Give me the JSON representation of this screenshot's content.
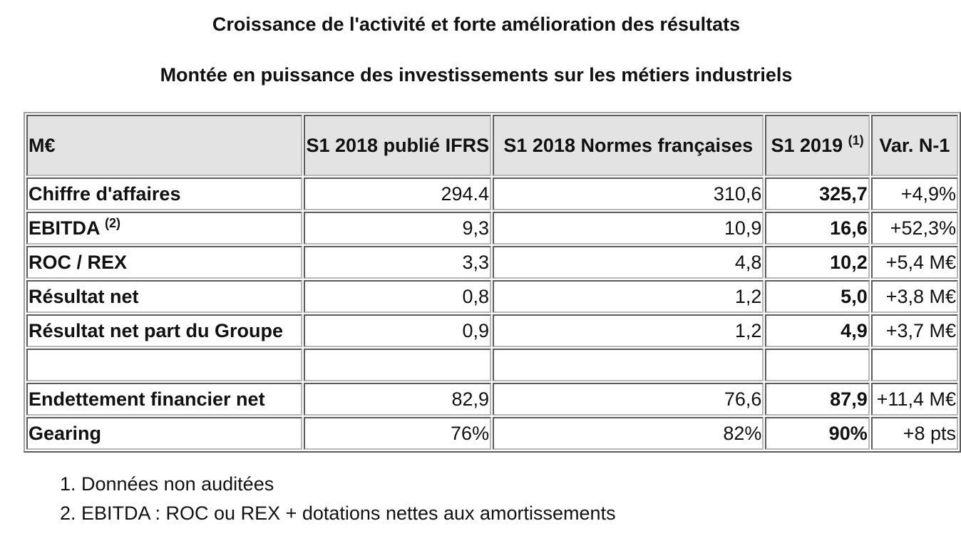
{
  "titles": {
    "main": "Croissance de l'activité et forte amélioration des résultats",
    "sub": "Montée en puissance des investissements sur les métiers industriels"
  },
  "table": {
    "header": {
      "unit": "M€",
      "col1": "S1 2018 publié IFRS",
      "col2": "S1 2018 Normes françaises",
      "col3": "S1 2019",
      "col3_note": "(1)",
      "col4": "Var. N-1"
    },
    "rows": [
      {
        "label": "Chiffre d'affaires",
        "note": "",
        "v1": "294.4",
        "v2": "310,6",
        "v3": "325,7",
        "v4": "+4,9%"
      },
      {
        "label": "EBITDA",
        "note": "(2)",
        "v1": "9,3",
        "v2": "10,9",
        "v3": "16,6",
        "v4": "+52,3%"
      },
      {
        "label": "ROC / REX",
        "note": "",
        "v1": "3,3",
        "v2": "4,8",
        "v3": "10,2",
        "v4": "+5,4 M€"
      },
      {
        "label": "Résultat net",
        "note": "",
        "v1": "0,8",
        "v2": "1,2",
        "v3": "5,0",
        "v4": "+3,8 M€"
      },
      {
        "label": "Résultat net part du Groupe",
        "note": "",
        "v1": "0,9",
        "v2": "1,2",
        "v3": "4,9",
        "v4": "+3,7 M€"
      },
      {
        "label": "",
        "note": "",
        "v1": "",
        "v2": "",
        "v3": "",
        "v4": ""
      },
      {
        "label": "Endettement financier net",
        "note": "",
        "v1": "82,9",
        "v2": "76,6",
        "v3": "87,9",
        "v4": "+11,4 M€"
      },
      {
        "label": "Gearing",
        "note": "",
        "v1": "76%",
        "v2": "82%",
        "v3": "90%",
        "v4": "+8 pts"
      }
    ]
  },
  "notes": [
    "Données non auditées",
    "EBITDA : ROC ou REX + dotations nettes aux amortissements"
  ]
}
